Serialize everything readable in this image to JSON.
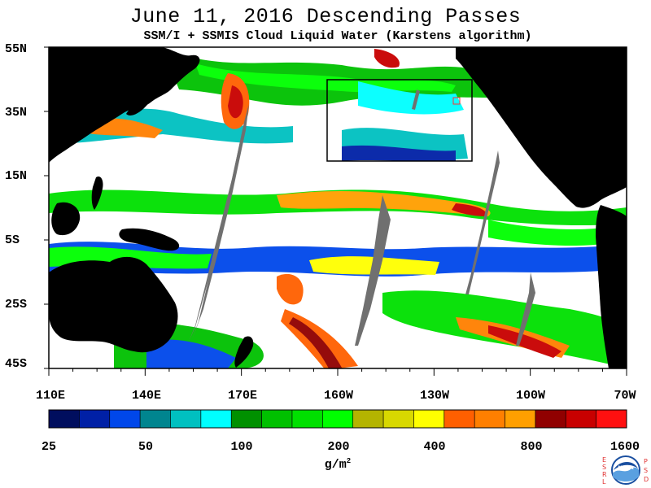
{
  "title": "June 11, 2016  Descending Passes",
  "subtitle": "SSM/I + SSMIS Cloud Liquid Water (Karstens algorithm)",
  "map": {
    "lat_labels": [
      "55N",
      "35N",
      "15N",
      "5S",
      "25S",
      "45S"
    ],
    "lon_labels": [
      "110E",
      "140E",
      "170E",
      "160W",
      "130W",
      "100W",
      "70W"
    ],
    "land_color": "#000000",
    "missing_swath_color": "#707070",
    "clear_color": "#ffffff"
  },
  "colorbar": {
    "colors": [
      "#000e5e",
      "#0020a6",
      "#0047ea",
      "#00858f",
      "#00c0c0",
      "#00ffff",
      "#009000",
      "#00c000",
      "#00e000",
      "#00ff00",
      "#b4b400",
      "#d8d800",
      "#ffff00",
      "#ff5f00",
      "#ff7f00",
      "#ff9f00",
      "#900000",
      "#c80000",
      "#ff1010"
    ],
    "tick_labels": [
      "25",
      "50",
      "100",
      "200",
      "400",
      "800",
      "1600"
    ],
    "units_base": "g/m",
    "units_exp": "2"
  },
  "logo": {
    "left_letters": [
      "E",
      "S",
      "R",
      "L"
    ],
    "right_letters": [
      "P",
      "S",
      "D"
    ],
    "center_text": "NOAA",
    "colors": {
      "letters": "#e03030",
      "ring": "#1a4fa0",
      "wave": "#5aa0e0"
    }
  }
}
